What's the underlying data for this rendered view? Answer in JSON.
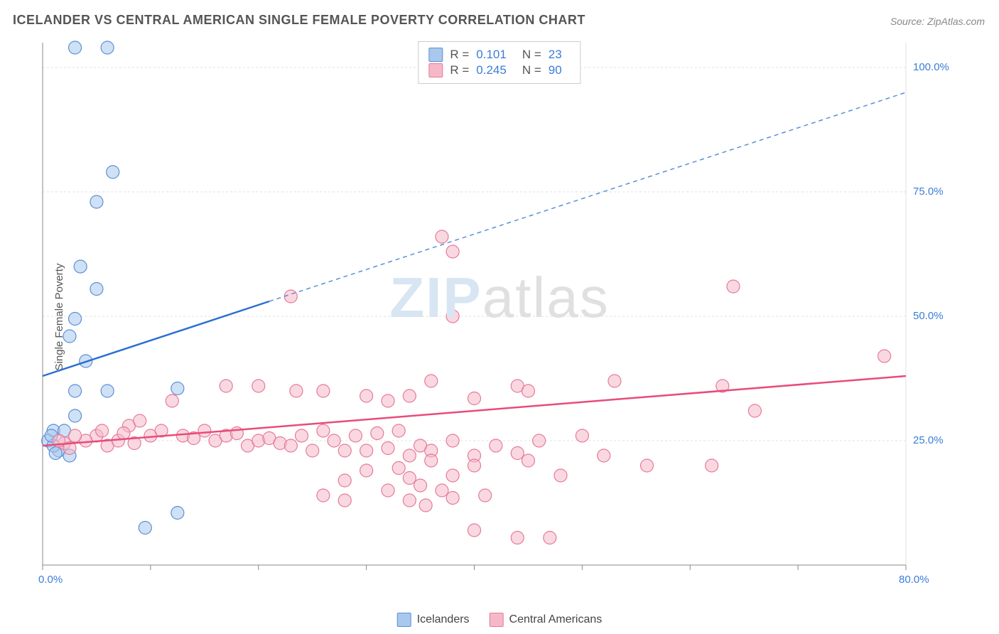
{
  "title": "ICELANDER VS CENTRAL AMERICAN SINGLE FEMALE POVERTY CORRELATION CHART",
  "source": "Source: ZipAtlas.com",
  "y_axis_label": "Single Female Poverty",
  "watermark_bold": "ZIP",
  "watermark_light": "atlas",
  "chart": {
    "type": "scatter",
    "xlim": [
      0,
      80
    ],
    "ylim": [
      0,
      105
    ],
    "background_color": "#ffffff",
    "grid_color": "#e0e0e0",
    "axis_line_color": "#888888",
    "x_ticks": [
      0,
      10,
      20,
      30,
      40,
      50,
      60,
      70,
      80
    ],
    "x_tick_labels": {
      "0": "0.0%",
      "80": "80.0%"
    },
    "y_ticks": [
      25,
      50,
      75,
      100
    ],
    "y_tick_labels": {
      "25": "25.0%",
      "50": "50.0%",
      "75": "75.0%",
      "100": "100.0%"
    },
    "marker_radius": 9,
    "marker_opacity": 0.55,
    "series": [
      {
        "name": "Icelanders",
        "color_fill": "#a8c8ed",
        "color_stroke": "#5b8fd6",
        "trend": {
          "solid": {
            "x1": 0,
            "y1": 38,
            "x2": 21,
            "y2": 53,
            "color": "#2c6fd1",
            "width": 2.5
          },
          "dashed": {
            "x1": 21,
            "y1": 53,
            "x2": 80,
            "y2": 95,
            "color": "#5b8fd6",
            "width": 1.5,
            "dash": "6,5"
          }
        },
        "points": [
          [
            3,
            104
          ],
          [
            6,
            104
          ],
          [
            6.5,
            79
          ],
          [
            5,
            73
          ],
          [
            3.5,
            60
          ],
          [
            5,
            55.5
          ],
          [
            3,
            49.5
          ],
          [
            2.5,
            46
          ],
          [
            4,
            41
          ],
          [
            3,
            35
          ],
          [
            6,
            35
          ],
          [
            3,
            30
          ],
          [
            12.5,
            35.5
          ],
          [
            1,
            27
          ],
          [
            2,
            27
          ],
          [
            0.5,
            25
          ],
          [
            1.5,
            23
          ],
          [
            1,
            24
          ],
          [
            2.5,
            22
          ],
          [
            0.8,
            26
          ],
          [
            1.2,
            22.5
          ],
          [
            12.5,
            10.5
          ],
          [
            9.5,
            7.5
          ]
        ]
      },
      {
        "name": "Central Americans",
        "color_fill": "#f6b8c8",
        "color_stroke": "#e57a98",
        "trend": {
          "solid": {
            "x1": 0,
            "y1": 24,
            "x2": 80,
            "y2": 38,
            "color": "#e84c7a",
            "width": 2.5
          }
        },
        "points": [
          [
            37,
            66
          ],
          [
            38,
            63
          ],
          [
            64,
            56
          ],
          [
            23,
            54
          ],
          [
            38,
            50
          ],
          [
            78,
            42
          ],
          [
            53,
            37
          ],
          [
            63,
            36
          ],
          [
            44,
            36
          ],
          [
            36,
            37
          ],
          [
            17,
            36
          ],
          [
            20,
            36
          ],
          [
            23.5,
            35
          ],
          [
            26,
            35
          ],
          [
            30,
            34
          ],
          [
            32,
            33
          ],
          [
            34,
            34
          ],
          [
            40,
            33.5
          ],
          [
            45,
            35
          ],
          [
            66,
            31
          ],
          [
            12,
            33
          ],
          [
            62,
            20
          ],
          [
            8,
            28
          ],
          [
            9,
            29
          ],
          [
            10,
            26
          ],
          [
            11,
            27
          ],
          [
            13,
            26
          ],
          [
            14,
            25.5
          ],
          [
            15,
            27
          ],
          [
            16,
            25
          ],
          [
            17,
            26
          ],
          [
            18,
            26.5
          ],
          [
            19,
            24
          ],
          [
            20,
            25
          ],
          [
            21,
            25.5
          ],
          [
            22,
            24.5
          ],
          [
            23,
            24
          ],
          [
            24,
            26
          ],
          [
            25,
            23
          ],
          [
            26,
            27
          ],
          [
            27,
            25
          ],
          [
            28,
            23
          ],
          [
            29,
            26
          ],
          [
            30,
            23
          ],
          [
            31,
            26.5
          ],
          [
            32,
            23.5
          ],
          [
            33,
            27
          ],
          [
            34,
            22
          ],
          [
            35,
            24
          ],
          [
            36,
            23
          ],
          [
            38,
            25
          ],
          [
            40,
            22
          ],
          [
            42,
            24
          ],
          [
            44,
            22.5
          ],
          [
            46,
            25
          ],
          [
            45,
            21
          ],
          [
            50,
            26
          ],
          [
            52,
            22
          ],
          [
            28,
            17
          ],
          [
            30,
            19
          ],
          [
            35,
            16
          ],
          [
            26,
            14
          ],
          [
            28,
            13
          ],
          [
            32,
            15
          ],
          [
            34,
            13
          ],
          [
            35.5,
            12
          ],
          [
            37,
            15
          ],
          [
            38,
            13.5
          ],
          [
            41,
            14
          ],
          [
            48,
            18
          ],
          [
            33,
            19.5
          ],
          [
            34,
            17.5
          ],
          [
            5,
            26
          ],
          [
            6,
            24
          ],
          [
            7,
            25
          ],
          [
            5.5,
            27
          ],
          [
            4,
            25
          ],
          [
            3,
            26
          ],
          [
            2,
            24.5
          ],
          [
            7.5,
            26.5
          ],
          [
            8.5,
            24.5
          ],
          [
            56,
            20
          ],
          [
            40,
            7
          ],
          [
            44,
            5.5
          ],
          [
            47,
            5.5
          ],
          [
            36,
            21
          ],
          [
            38,
            18
          ],
          [
            40,
            20
          ],
          [
            1.5,
            25
          ],
          [
            2.5,
            23.5
          ]
        ]
      }
    ]
  },
  "stats_legend": [
    {
      "swatch_fill": "#a8c8ed",
      "swatch_stroke": "#5b8fd6",
      "r_label": "R  =",
      "r_value": "0.101",
      "n_label": "N  =",
      "n_value": "23"
    },
    {
      "swatch_fill": "#f6b8c8",
      "swatch_stroke": "#e57a98",
      "r_label": "R  =",
      "r_value": "0.245",
      "n_label": "N  =",
      "n_value": "90"
    }
  ],
  "bottom_legend": [
    {
      "swatch_fill": "#a8c8ed",
      "swatch_stroke": "#5b8fd6",
      "label": "Icelanders"
    },
    {
      "swatch_fill": "#f6b8c8",
      "swatch_stroke": "#e57a98",
      "label": "Central Americans"
    }
  ]
}
